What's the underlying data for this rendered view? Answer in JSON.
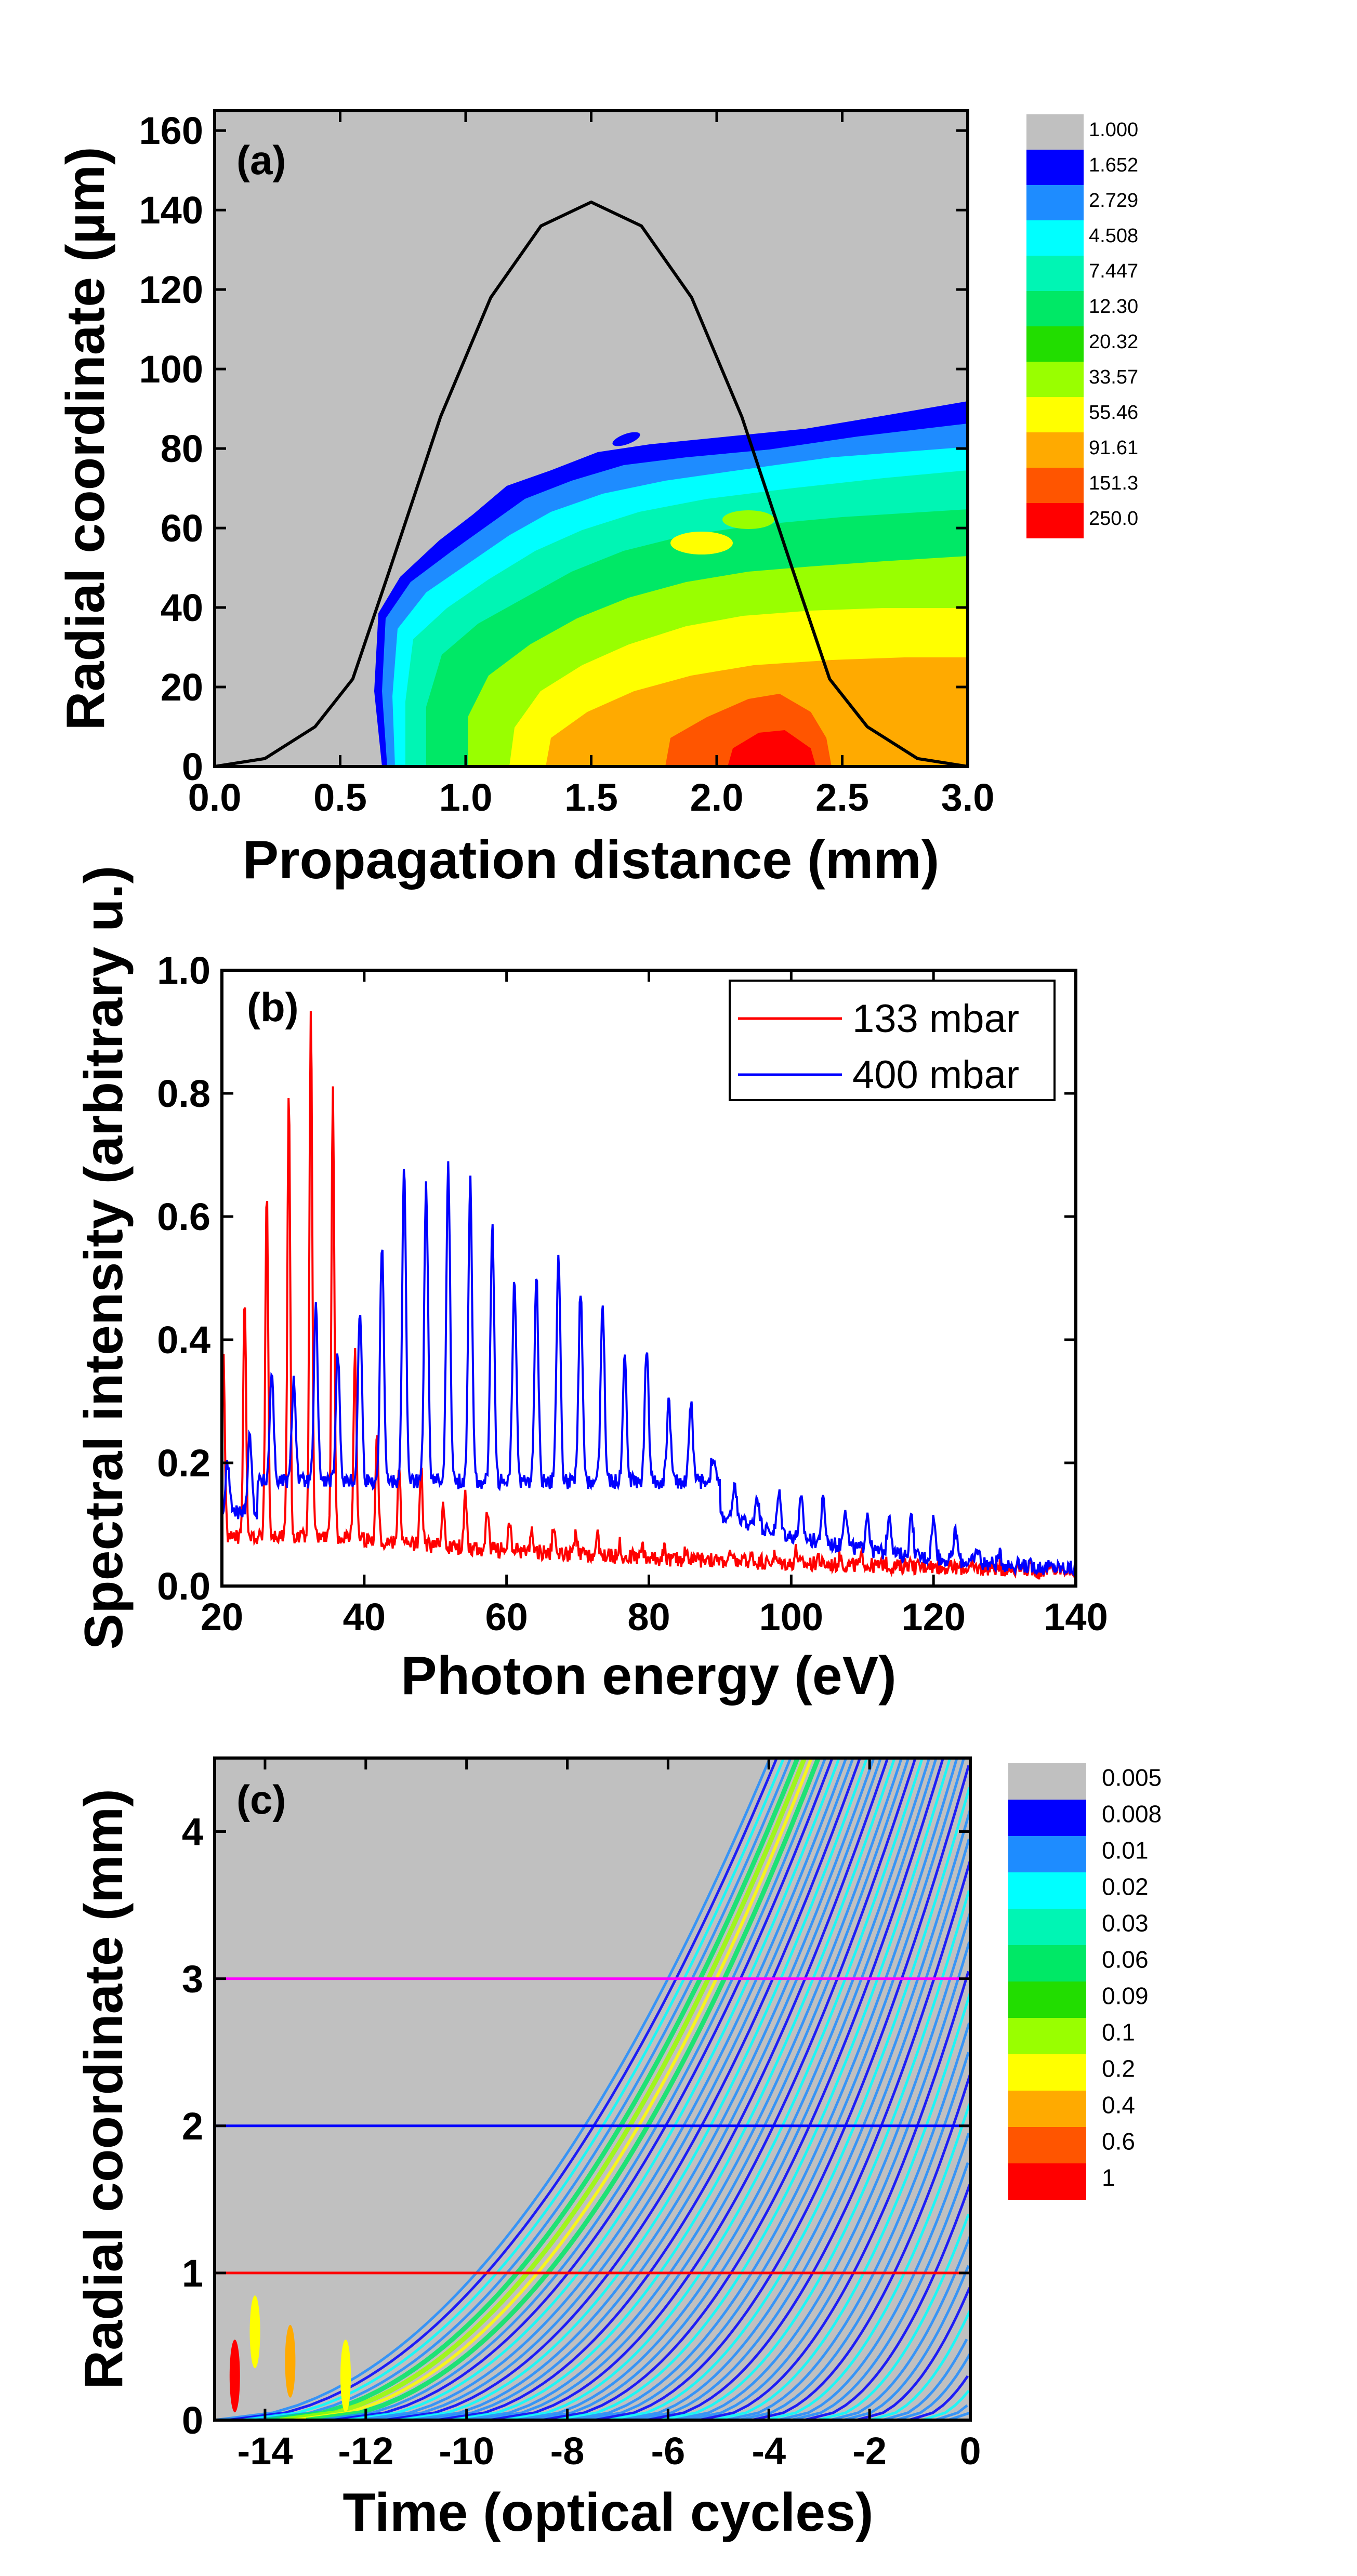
{
  "chart_data": [
    {
      "panel": "(a)",
      "type": "heatmap",
      "xlabel": "Propagation distance (mm)",
      "ylabel": "Radial coordinate (µm)",
      "xlim": [
        0,
        3
      ],
      "ylim": [
        0,
        165
      ],
      "xticks": [
        "0.0",
        "0.5",
        "1.0",
        "1.5",
        "2.0",
        "2.5",
        "3.0"
      ],
      "yticks": [
        "0",
        "20",
        "40",
        "60",
        "80",
        "100",
        "120",
        "140",
        "160"
      ],
      "colorbar": {
        "labels": [
          "1.000",
          "1.652",
          "2.729",
          "4.508",
          "7.447",
          "12.30",
          "20.32",
          "33.57",
          "55.46",
          "91.61",
          "151.3",
          "250.0"
        ],
        "colors": [
          "#c0c0c0",
          "#0000ff",
          "#1e8cff",
          "#00ffff",
          "#00f5b4",
          "#00e866",
          "#22dd00",
          "#99ff00",
          "#ffff00",
          "#ffaa00",
          "#ff5500",
          "#ff0000"
        ]
      },
      "overlay_line": {
        "description": "pressure profile",
        "x": [
          0,
          0.2,
          0.4,
          0.55,
          0.7,
          0.9,
          1.1,
          1.3,
          1.5,
          1.7,
          1.9,
          2.1,
          2.3,
          2.45,
          2.6,
          2.8,
          3.0
        ],
        "y": [
          0,
          2,
          10,
          22,
          50,
          88,
          118,
          136,
          142,
          136,
          118,
          88,
          50,
          22,
          10,
          2,
          0
        ],
        "color": "#000000"
      }
    },
    {
      "panel": "(b)",
      "type": "line",
      "xlabel": "Photon energy (eV)",
      "ylabel": "Spectral intensity (arbitrary u.)",
      "xlim": [
        20,
        140
      ],
      "ylim": [
        0,
        1.0
      ],
      "xticks": [
        "20",
        "40",
        "60",
        "80",
        "100",
        "120",
        "140"
      ],
      "yticks": [
        "0.0",
        "0.2",
        "0.4",
        "0.6",
        "0.8",
        "1.0"
      ],
      "legend_position": "top-right",
      "series": [
        {
          "name": "133 mbar",
          "color": "#ff0000",
          "peaks_x": [
            20.2,
            23.2,
            26.3,
            29.4,
            32.5,
            35.6,
            38.7,
            41.8,
            44.9,
            48.0,
            51.1,
            54.2,
            57.3,
            60.4,
            63.5,
            66.6,
            69.7,
            72.8,
            75.9,
            79.0,
            82.1,
            85.2,
            88.3,
            91.4,
            94.5,
            97.6,
            100.7,
            103.8,
            106.9,
            110.0,
            113.1,
            116.2,
            119.3,
            122.4,
            125.5,
            128.6,
            131.7,
            134.8
          ],
          "peaks_y": [
            0.39,
            0.47,
            0.65,
            0.8,
            0.93,
            0.8,
            0.39,
            0.25,
            0.2,
            0.19,
            0.14,
            0.15,
            0.12,
            0.1,
            0.09,
            0.09,
            0.08,
            0.08,
            0.07,
            0.07,
            0.06,
            0.06,
            0.05,
            0.05,
            0.05,
            0.05,
            0.06,
            0.05,
            0.05,
            0.05,
            0.04,
            0.04,
            0.04,
            0.03,
            0.03,
            0.03,
            0.03,
            0.02
          ]
        },
        {
          "name": "400 mbar",
          "color": "#0000ff",
          "peaks_x": [
            20.8,
            23.9,
            27.0,
            30.1,
            33.2,
            36.3,
            39.4,
            42.5,
            45.6,
            48.7,
            51.8,
            54.9,
            58.0,
            61.1,
            64.2,
            67.3,
            70.4,
            73.5,
            76.6,
            79.7,
            82.8,
            85.9,
            89.0,
            92.1,
            95.2,
            98.3,
            101.4,
            104.5,
            107.6,
            110.7,
            113.8,
            116.9,
            120.0,
            123.1,
            126.2,
            129.3,
            132.4,
            135.5
          ],
          "peaks_y": [
            0.2,
            0.25,
            0.35,
            0.34,
            0.45,
            0.38,
            0.45,
            0.56,
            0.68,
            0.65,
            0.69,
            0.66,
            0.58,
            0.5,
            0.5,
            0.54,
            0.48,
            0.46,
            0.38,
            0.39,
            0.3,
            0.3,
            0.21,
            0.16,
            0.15,
            0.15,
            0.14,
            0.14,
            0.13,
            0.12,
            0.12,
            0.11,
            0.11,
            0.09,
            0.06,
            0.05,
            0.03,
            0.03
          ]
        }
      ]
    },
    {
      "panel": "(c)",
      "type": "heatmap",
      "xlabel": "Time (optical cycles)",
      "ylabel": "Radial coordinate (mm)",
      "xlim": [
        -15,
        0
      ],
      "ylim": [
        0,
        4.5
      ],
      "xticks": [
        "-14",
        "-12",
        "-10",
        "-8",
        "-6",
        "-4",
        "-2",
        "0"
      ],
      "yticks": [
        "0",
        "1",
        "2",
        "3",
        "4"
      ],
      "colorbar": {
        "labels": [
          "0.005",
          "0.008",
          "0.01",
          "0.02",
          "0.03",
          "0.06",
          "0.09",
          "0.1",
          "0.2",
          "0.4",
          "0.6",
          "1"
        ],
        "colors": [
          "#c0c0c0",
          "#0000ff",
          "#1e8cff",
          "#00ffff",
          "#00f5b4",
          "#00e866",
          "#22dd00",
          "#99ff00",
          "#ffff00",
          "#ffaa00",
          "#ff5500",
          "#ff0000"
        ]
      },
      "horizontal_lines": [
        {
          "y": 1,
          "color": "#ff0000"
        },
        {
          "y": 2,
          "color": "#0000ff"
        },
        {
          "y": 3,
          "color": "#ff00ff"
        }
      ]
    }
  ]
}
